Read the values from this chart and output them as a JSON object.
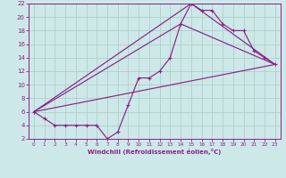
{
  "xlabel": "Windchill (Refroidissement éolien,°C)",
  "background_color": "#cde8e8",
  "grid_color": "#b0d0c8",
  "line_color": "#882288",
  "xlim": [
    -0.5,
    23.5
  ],
  "ylim": [
    2,
    22
  ],
  "xticks": [
    0,
    1,
    2,
    3,
    4,
    5,
    6,
    7,
    8,
    9,
    10,
    11,
    12,
    13,
    14,
    15,
    16,
    17,
    18,
    19,
    20,
    21,
    22,
    23
  ],
  "yticks": [
    2,
    4,
    6,
    8,
    10,
    12,
    14,
    16,
    18,
    20,
    22
  ],
  "line1_x": [
    0,
    1,
    2,
    3,
    4,
    5,
    6,
    7,
    8,
    9,
    10,
    11,
    12,
    13,
    14,
    15,
    16,
    17,
    18,
    19,
    20,
    21,
    22,
    23
  ],
  "line1_y": [
    6,
    5,
    4,
    4,
    4,
    4,
    4,
    2,
    3,
    7,
    11,
    11,
    12,
    14,
    19,
    22,
    21,
    21,
    19,
    18,
    18,
    15,
    14,
    13
  ],
  "line2_x": [
    0,
    23
  ],
  "line2_y": [
    6,
    13
  ],
  "line3_x": [
    0,
    14,
    23
  ],
  "line3_y": [
    6,
    19,
    13
  ],
  "line4_x": [
    0,
    15,
    23
  ],
  "line4_y": [
    6,
    22,
    13
  ]
}
